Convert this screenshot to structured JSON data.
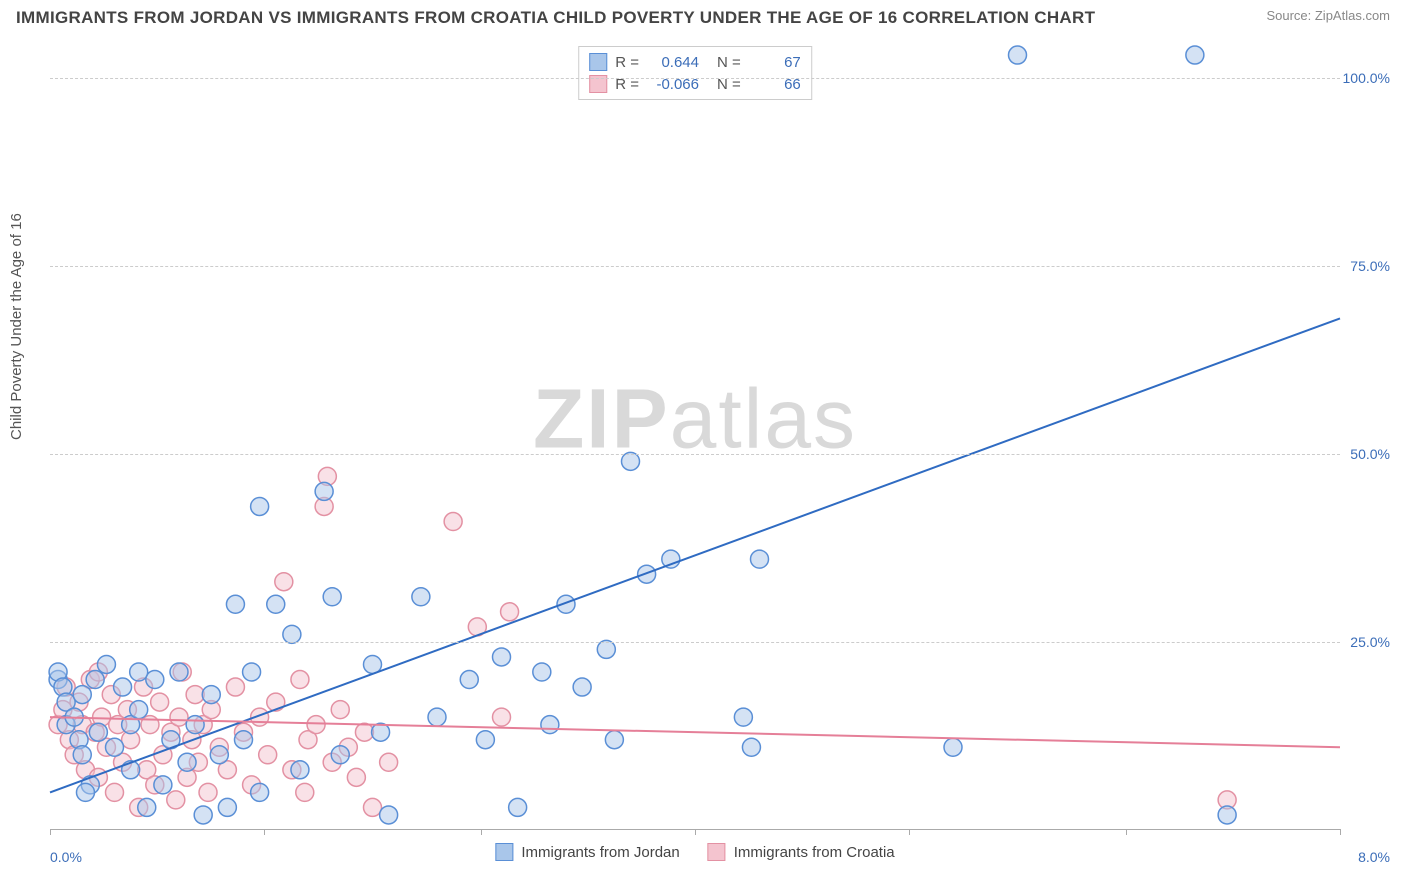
{
  "title": "IMMIGRANTS FROM JORDAN VS IMMIGRANTS FROM CROATIA CHILD POVERTY UNDER THE AGE OF 16 CORRELATION CHART",
  "source": "Source: ZipAtlas.com",
  "watermark_a": "ZIP",
  "watermark_b": "atlas",
  "y_axis_label": "Child Poverty Under the Age of 16",
  "chart": {
    "type": "scatter",
    "xlim": [
      0,
      8.0
    ],
    "ylim": [
      0,
      105
    ],
    "x_ticks": [
      0,
      1.33,
      2.67,
      4.0,
      5.33,
      6.67,
      8.0
    ],
    "x_tick_labels_shown": {
      "first": "0.0%",
      "last": "8.0%"
    },
    "y_ticks": [
      25,
      50,
      75,
      100
    ],
    "y_tick_labels": [
      "25.0%",
      "50.0%",
      "75.0%",
      "100.0%"
    ],
    "grid_color": "#cccccc",
    "axis_color": "#aaaaaa",
    "background_color": "#ffffff",
    "tick_label_color": "#3b6db8",
    "tick_label_fontsize": 14,
    "axis_label_fontsize": 15,
    "marker_radius": 9,
    "marker_stroke_width": 1.5,
    "marker_fill_opacity": 0.25,
    "line_width": 2
  },
  "series": [
    {
      "id": "jordan",
      "label": "Immigrants from Jordan",
      "color_stroke": "#5a8fd6",
      "color_fill": "#a9c6ea",
      "line_color": "#2f6bc2",
      "R": "0.644",
      "N": "67",
      "trend": {
        "x1": 0,
        "y1": 5,
        "x2": 8.0,
        "y2": 68
      },
      "points": [
        [
          0.05,
          20
        ],
        [
          0.05,
          21
        ],
        [
          0.08,
          19
        ],
        [
          0.1,
          17
        ],
        [
          0.1,
          14
        ],
        [
          0.15,
          15
        ],
        [
          0.18,
          12
        ],
        [
          0.2,
          18
        ],
        [
          0.2,
          10
        ],
        [
          0.25,
          6
        ],
        [
          0.28,
          20
        ],
        [
          0.3,
          13
        ],
        [
          0.35,
          22
        ],
        [
          0.4,
          11
        ],
        [
          0.45,
          19
        ],
        [
          0.5,
          14
        ],
        [
          0.5,
          8
        ],
        [
          0.55,
          16
        ],
        [
          0.6,
          3
        ],
        [
          0.65,
          20
        ],
        [
          0.7,
          6
        ],
        [
          0.75,
          12
        ],
        [
          0.8,
          21
        ],
        [
          0.85,
          9
        ],
        [
          0.9,
          14
        ],
        [
          0.95,
          2
        ],
        [
          1.0,
          18
        ],
        [
          1.05,
          10
        ],
        [
          1.1,
          3
        ],
        [
          1.15,
          30
        ],
        [
          1.2,
          12
        ],
        [
          1.25,
          21
        ],
        [
          1.3,
          5
        ],
        [
          1.3,
          43
        ],
        [
          1.4,
          30
        ],
        [
          1.5,
          26
        ],
        [
          1.55,
          8
        ],
        [
          1.7,
          45
        ],
        [
          1.75,
          31
        ],
        [
          1.8,
          10
        ],
        [
          2.0,
          22
        ],
        [
          2.05,
          13
        ],
        [
          2.1,
          2
        ],
        [
          2.3,
          31
        ],
        [
          2.4,
          15
        ],
        [
          2.6,
          20
        ],
        [
          2.7,
          12
        ],
        [
          2.8,
          23
        ],
        [
          2.9,
          3
        ],
        [
          3.05,
          21
        ],
        [
          3.1,
          14
        ],
        [
          3.2,
          30
        ],
        [
          3.3,
          19
        ],
        [
          3.45,
          24
        ],
        [
          3.5,
          12
        ],
        [
          3.6,
          49
        ],
        [
          3.7,
          34
        ],
        [
          3.85,
          36
        ],
        [
          4.3,
          15
        ],
        [
          4.35,
          11
        ],
        [
          4.4,
          36
        ],
        [
          5.6,
          11
        ],
        [
          6.0,
          103
        ],
        [
          7.1,
          103
        ],
        [
          7.3,
          2
        ],
        [
          0.55,
          21
        ],
        [
          0.22,
          5
        ]
      ]
    },
    {
      "id": "croatia",
      "label": "Immigrants from Croatia",
      "color_stroke": "#e391a3",
      "color_fill": "#f4c4cf",
      "line_color": "#e57f98",
      "R": "-0.066",
      "N": "66",
      "trend": {
        "x1": 0,
        "y1": 15,
        "x2": 8.0,
        "y2": 11
      },
      "points": [
        [
          0.05,
          14
        ],
        [
          0.08,
          16
        ],
        [
          0.1,
          19
        ],
        [
          0.12,
          12
        ],
        [
          0.15,
          10
        ],
        [
          0.18,
          17
        ],
        [
          0.2,
          14
        ],
        [
          0.22,
          8
        ],
        [
          0.25,
          20
        ],
        [
          0.28,
          13
        ],
        [
          0.3,
          7
        ],
        [
          0.32,
          15
        ],
        [
          0.35,
          11
        ],
        [
          0.38,
          18
        ],
        [
          0.4,
          5
        ],
        [
          0.42,
          14
        ],
        [
          0.45,
          9
        ],
        [
          0.48,
          16
        ],
        [
          0.5,
          12
        ],
        [
          0.55,
          3
        ],
        [
          0.58,
          19
        ],
        [
          0.6,
          8
        ],
        [
          0.62,
          14
        ],
        [
          0.65,
          6
        ],
        [
          0.68,
          17
        ],
        [
          0.7,
          10
        ],
        [
          0.75,
          13
        ],
        [
          0.78,
          4
        ],
        [
          0.8,
          15
        ],
        [
          0.82,
          21
        ],
        [
          0.85,
          7
        ],
        [
          0.88,
          12
        ],
        [
          0.9,
          18
        ],
        [
          0.92,
          9
        ],
        [
          0.95,
          14
        ],
        [
          0.98,
          5
        ],
        [
          1.0,
          16
        ],
        [
          1.05,
          11
        ],
        [
          1.1,
          8
        ],
        [
          1.15,
          19
        ],
        [
          1.2,
          13
        ],
        [
          1.25,
          6
        ],
        [
          1.3,
          15
        ],
        [
          1.35,
          10
        ],
        [
          1.4,
          17
        ],
        [
          1.45,
          33
        ],
        [
          1.5,
          8
        ],
        [
          1.55,
          20
        ],
        [
          1.58,
          5
        ],
        [
          1.6,
          12
        ],
        [
          1.65,
          14
        ],
        [
          1.7,
          43
        ],
        [
          1.72,
          47
        ],
        [
          1.75,
          9
        ],
        [
          1.8,
          16
        ],
        [
          1.85,
          11
        ],
        [
          1.9,
          7
        ],
        [
          1.95,
          13
        ],
        [
          2.0,
          3
        ],
        [
          2.1,
          9
        ],
        [
          2.5,
          41
        ],
        [
          2.65,
          27
        ],
        [
          2.8,
          15
        ],
        [
          2.85,
          29
        ],
        [
          7.3,
          4
        ],
        [
          0.3,
          21
        ]
      ]
    }
  ],
  "stats_legend": {
    "R_label": "R =",
    "N_label": "N ="
  }
}
